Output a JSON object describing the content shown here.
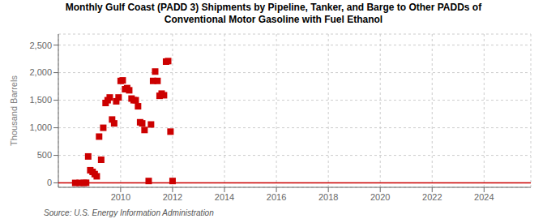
{
  "chart_data": {
    "type": "scatter",
    "title": "Monthly Gulf Coast (PADD 3) Shipments by Pipeline, Tanker, and Barge to Other PADDs of\nConventional Motor Gasoline with Fuel Ethanol",
    "y_label": "Thousand Barrels",
    "annotations": [
      "Source: U.S. Energy Information Administration"
    ],
    "xlim": [
      2007.6,
      2025.8
    ],
    "ylim": [
      -80,
      2700
    ],
    "xticks": [
      2010,
      2012,
      2014,
      2016,
      2018,
      2020,
      2022,
      2024
    ],
    "yticks": [
      0,
      500,
      {
        "value": 1000,
        "label": "1,000"
      },
      {
        "value": 1500,
        "label": "1,500"
      },
      {
        "value": 2000,
        "label": "2,000"
      },
      {
        "value": 2500,
        "label": "2,500"
      }
    ],
    "grid": true,
    "series": [
      {
        "type": "scatter",
        "color": "#cc0000",
        "marker": "square",
        "x": [
          2008.25,
          2008.42,
          2008.58,
          2008.67,
          2008.75,
          2008.83,
          2008.92,
          2009.0,
          2009.08,
          2009.17,
          2009.25,
          2009.33,
          2009.42,
          2009.5,
          2009.58,
          2009.67,
          2009.75,
          2009.83,
          2009.92,
          2010.0,
          2010.08,
          2010.17,
          2010.25,
          2010.33,
          2010.42,
          2010.5,
          2010.58,
          2010.67,
          2010.75,
          2010.83,
          2010.92,
          2011.08,
          2011.17,
          2011.25,
          2011.33,
          2011.42,
          2011.5,
          2011.58,
          2011.67,
          2011.75,
          2011.83,
          2011.92,
          2012.0
        ],
        "values": [
          0,
          0,
          0,
          3,
          480,
          230,
          200,
          160,
          120,
          840,
          420,
          1000,
          1450,
          1500,
          1550,
          1150,
          1080,
          1480,
          1550,
          1850,
          1860,
          1700,
          1720,
          1680,
          1530,
          1500,
          1500,
          1390,
          1100,
          1080,
          960,
          35,
          1060,
          1850,
          2020,
          1850,
          1580,
          1620,
          1590,
          2200,
          2210,
          930,
          35
        ]
      },
      {
        "type": "line",
        "color": "#cc0000",
        "x": [
          2007.6,
          2025.8
        ],
        "values": [
          0,
          0
        ]
      }
    ]
  }
}
